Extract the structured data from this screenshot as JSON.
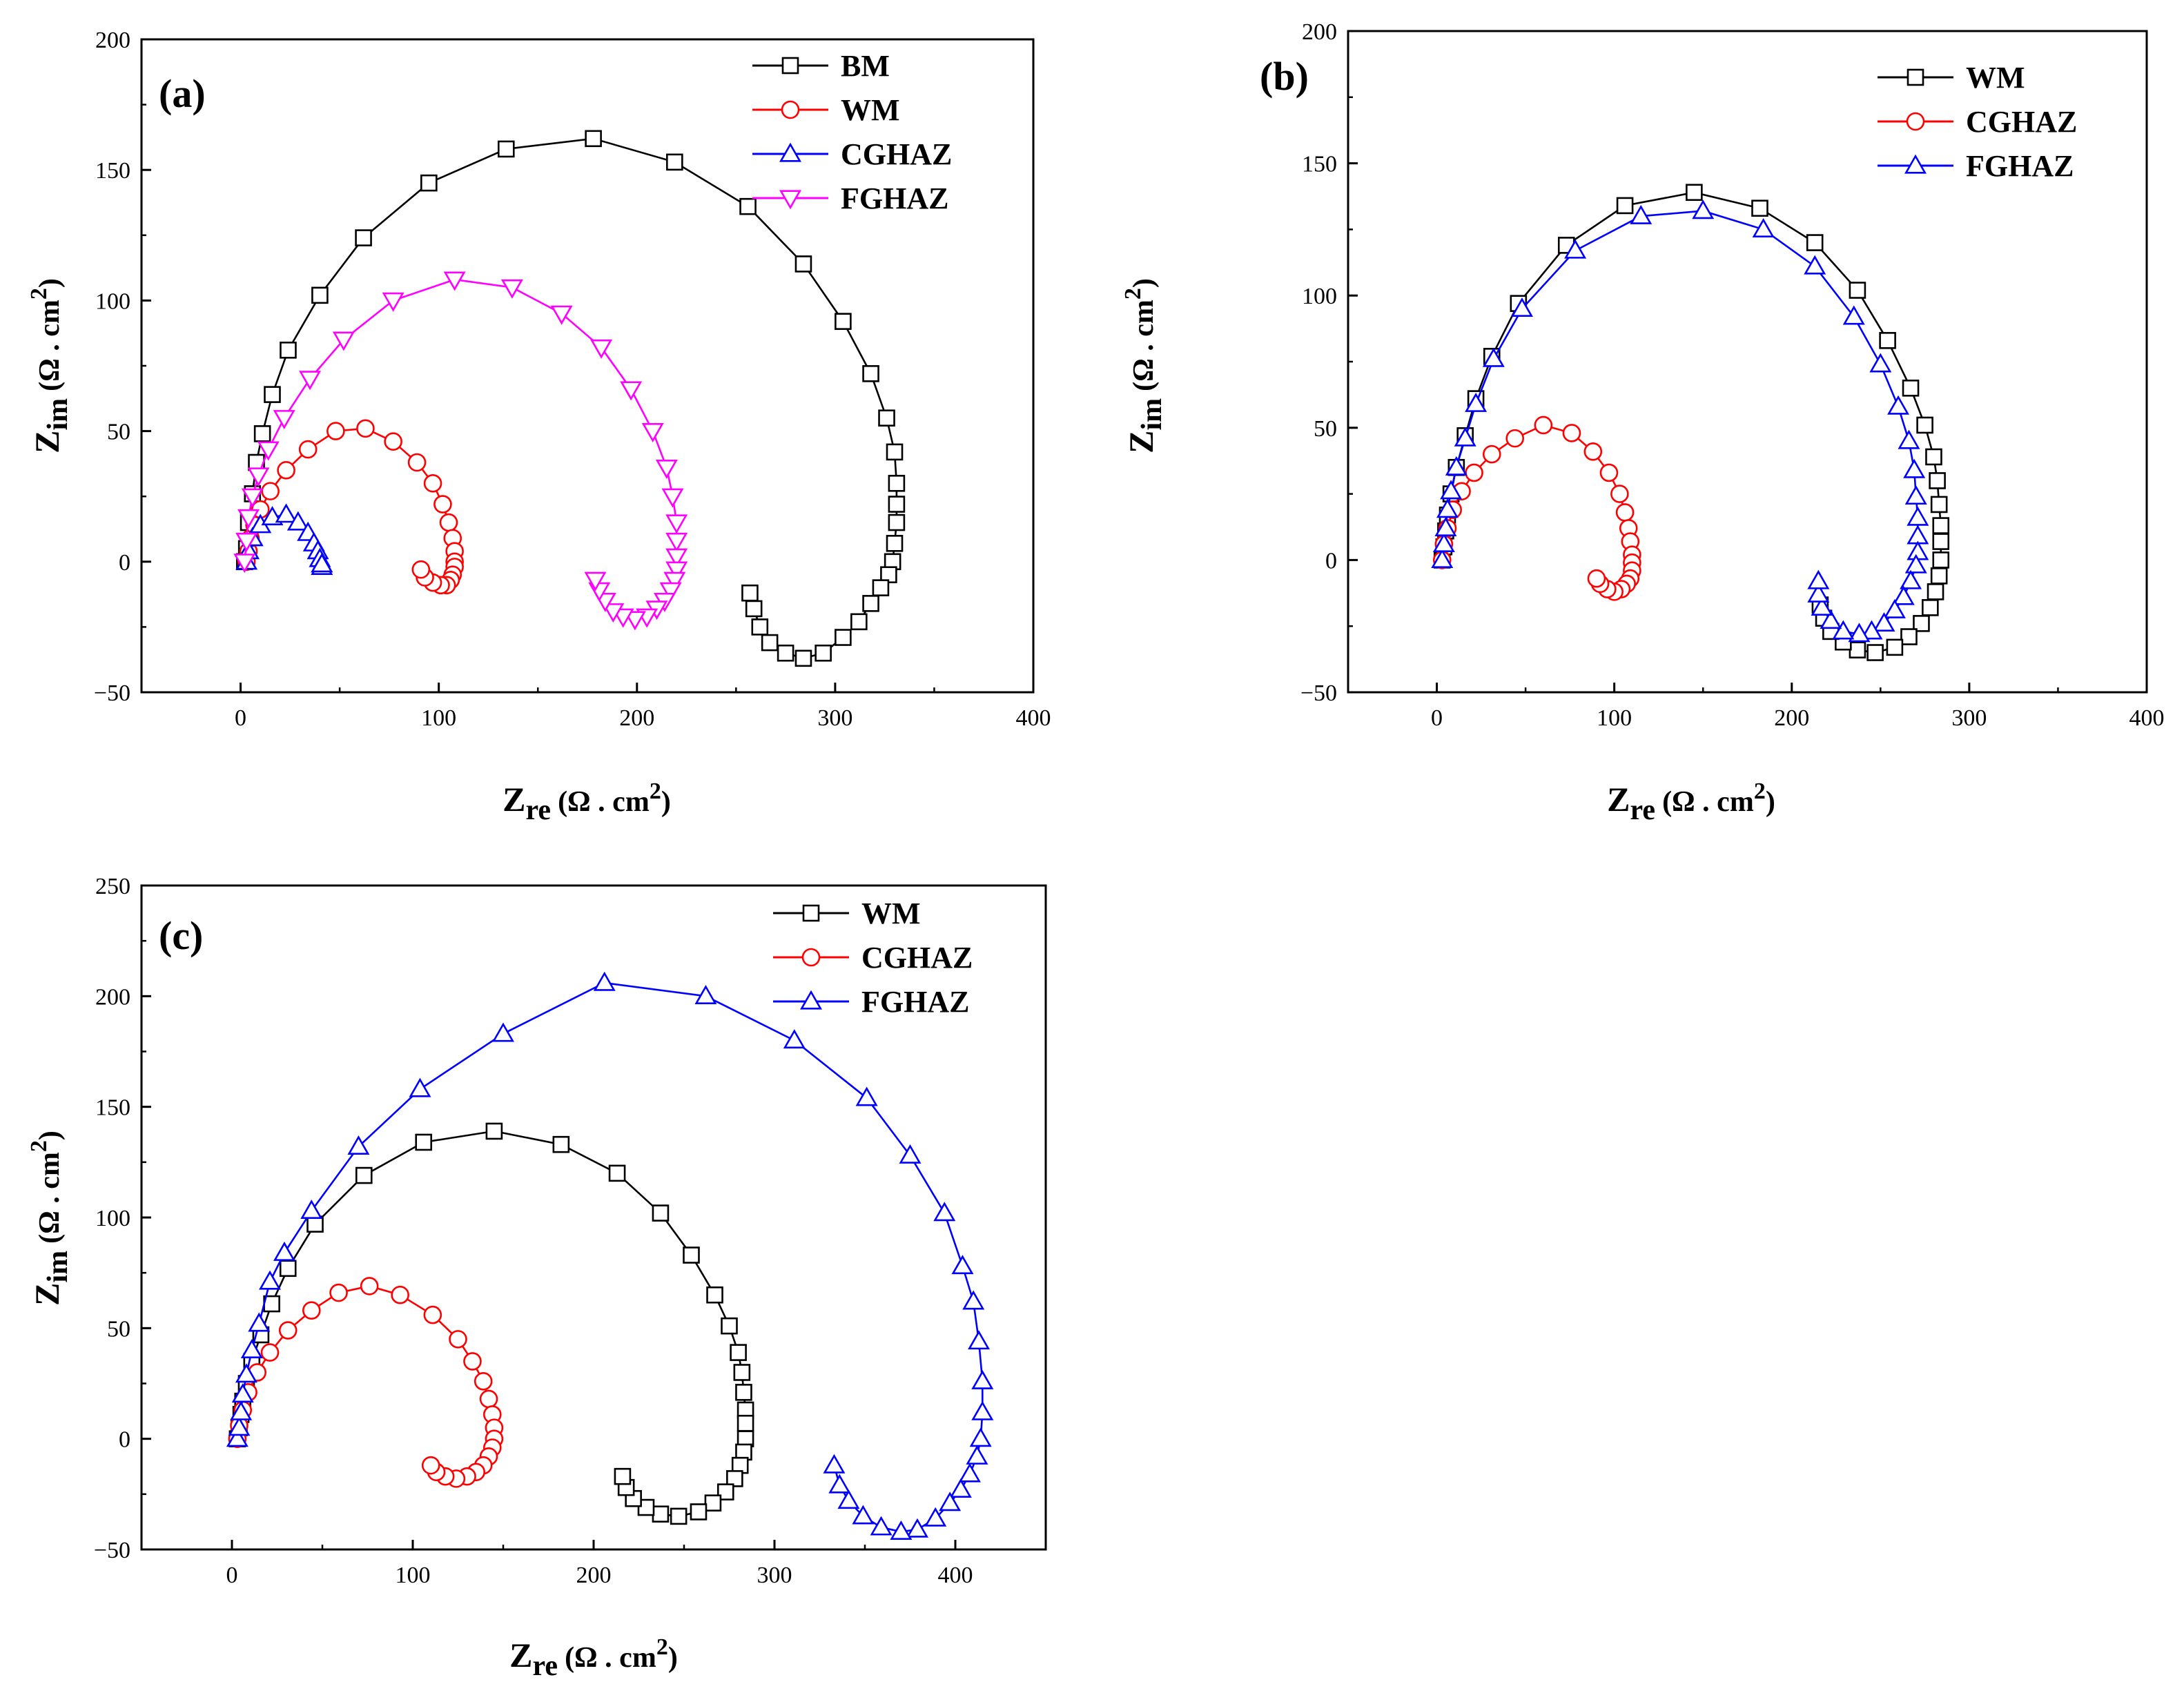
{
  "series_colors": {
    "BM": "#000000",
    "WM": "#ff0000",
    "CGHAZ": "#0000ff",
    "FGHAZ": "#ff00ff"
  },
  "chart_data": [
    {
      "type": "scatter",
      "panel_label": "(a)",
      "xlabel_main": "Z",
      "xlabel_sub": "re",
      "xlabel_unit": "(Ω . cm",
      "xlabel_sup": "2",
      "xlabel_close": ")",
      "ylabel_main": "Z",
      "ylabel_sub": "im",
      "ylabel_unit": "(Ω . cm",
      "ylabel_sup": "2",
      "ylabel_close": ")",
      "xlim": [
        -50,
        400
      ],
      "ylim": [
        -50,
        200
      ],
      "xticks": [
        0,
        100,
        200,
        300,
        400
      ],
      "yticks": [
        -50,
        0,
        50,
        100,
        150,
        200
      ],
      "legend_position": "top-right",
      "series": [
        {
          "name": "BM",
          "color": "#000000",
          "marker": "square",
          "x": [
            2,
            3,
            4,
            6,
            8,
            11,
            16,
            24,
            40,
            62,
            95,
            134,
            178,
            219,
            256,
            284,
            304,
            318,
            326,
            330,
            331,
            331,
            331,
            330,
            329,
            327,
            323,
            318,
            312,
            304,
            294,
            284,
            275,
            267,
            262,
            259,
            257
          ],
          "y": [
            0,
            5,
            15,
            26,
            38,
            49,
            64,
            81,
            102,
            124,
            145,
            158,
            162,
            153,
            136,
            114,
            92,
            72,
            55,
            42,
            30,
            22,
            15,
            7,
            0,
            -5,
            -10,
            -16,
            -23,
            -29,
            -35,
            -37,
            -35,
            -31,
            -25,
            -18,
            -12
          ]
        },
        {
          "name": "WM",
          "color": "#ff0000",
          "marker": "circle",
          "x": [
            3,
            4,
            5,
            7,
            10,
            15,
            23,
            34,
            48,
            63,
            77,
            89,
            97,
            102,
            105,
            107,
            108,
            108,
            108,
            107,
            106,
            104,
            101,
            97,
            93,
            91
          ],
          "y": [
            0,
            4,
            9,
            14,
            20,
            27,
            35,
            43,
            50,
            51,
            46,
            38,
            30,
            22,
            15,
            9,
            4,
            0,
            -2,
            -5,
            -7,
            -9,
            -9,
            -8,
            -6,
            -3
          ]
        },
        {
          "name": "CGHAZ",
          "color": "#0000ff",
          "marker": "triangle-up",
          "x": [
            3,
            4,
            6,
            10,
            16,
            23,
            29,
            34,
            37,
            39,
            40,
            41,
            41,
            41
          ],
          "y": [
            0,
            4,
            9,
            14,
            17,
            18,
            15,
            11,
            7,
            4,
            1,
            -1,
            -2,
            -1
          ]
        },
        {
          "name": "FGHAZ",
          "color": "#ff00ff",
          "marker": "triangle-down",
          "x": [
            2,
            3,
            4,
            6,
            9,
            14,
            22,
            35,
            52,
            77,
            108,
            137,
            162,
            182,
            197,
            208,
            215,
            218,
            220,
            220,
            220,
            220,
            219,
            217,
            214,
            210,
            205,
            199,
            193,
            188,
            184,
            181,
            179
          ],
          "y": [
            0,
            8,
            17,
            25,
            33,
            43,
            55,
            70,
            85,
            100,
            108,
            105,
            95,
            82,
            66,
            50,
            36,
            25,
            15,
            8,
            2,
            -3,
            -7,
            -11,
            -15,
            -18,
            -21,
            -22,
            -21,
            -19,
            -15,
            -11,
            -7
          ]
        }
      ]
    },
    {
      "type": "scatter",
      "panel_label": "(b)",
      "xlabel_main": "Z",
      "xlabel_sub": "re",
      "xlabel_unit": "(Ω . cm",
      "xlabel_sup": "2",
      "xlabel_close": ")",
      "ylabel_main": "Z",
      "ylabel_sub": "im",
      "ylabel_unit": "(Ω . cm",
      "ylabel_sup": "2",
      "ylabel_close": ")",
      "xlim": [
        -50,
        400
      ],
      "ylim": [
        -50,
        200
      ],
      "xticks": [
        -50,
        0,
        100,
        200,
        300,
        400
      ],
      "xtick_labels": [
        "",
        "0",
        "100",
        "200",
        "300",
        "400"
      ],
      "yticks": [
        -50,
        0,
        50,
        100,
        150,
        200
      ],
      "legend_position": "top-right",
      "series": [
        {
          "name": "WM",
          "color": "#000000",
          "marker": "square",
          "x": [
            3,
            4,
            5,
            6,
            8,
            11,
            16,
            22,
            31,
            46,
            73,
            106,
            145,
            182,
            213,
            237,
            254,
            267,
            275,
            280,
            282,
            283,
            284,
            284,
            284,
            283,
            281,
            278,
            273,
            266,
            258,
            247,
            237,
            229,
            222,
            218,
            216
          ],
          "y": [
            0,
            5,
            11,
            17,
            25,
            35,
            47,
            61,
            77,
            97,
            119,
            134,
            139,
            133,
            120,
            102,
            83,
            65,
            51,
            39,
            30,
            21,
            13,
            7,
            0,
            -6,
            -12,
            -18,
            -24,
            -29,
            -33,
            -35,
            -34,
            -31,
            -27,
            -22,
            -17
          ]
        },
        {
          "name": "CGHAZ",
          "color": "#ff0000",
          "marker": "circle",
          "x": [
            3,
            4,
            6,
            9,
            14,
            21,
            31,
            44,
            60,
            76,
            88,
            97,
            103,
            106,
            108,
            109,
            110,
            110,
            110,
            109,
            107,
            104,
            100,
            96,
            92,
            90
          ],
          "y": [
            0,
            6,
            12,
            19,
            26,
            33,
            40,
            46,
            51,
            48,
            41,
            33,
            25,
            18,
            12,
            7,
            2,
            -1,
            -4,
            -7,
            -9,
            -11,
            -12,
            -11,
            -9,
            -7
          ]
        },
        {
          "name": "FGHAZ",
          "color": "#0000ff",
          "marker": "triangle-up",
          "x": [
            3,
            4,
            5,
            6,
            8,
            11,
            16,
            22,
            32,
            48,
            78,
            115,
            150,
            184,
            213,
            235,
            250,
            260,
            266,
            269,
            270,
            271,
            271,
            271,
            270,
            267,
            263,
            258,
            252,
            245,
            238,
            229,
            222,
            217,
            215,
            215
          ],
          "y": [
            0,
            6,
            12,
            19,
            26,
            35,
            46,
            59,
            76,
            95,
            117,
            130,
            132,
            125,
            111,
            92,
            74,
            58,
            45,
            34,
            24,
            16,
            9,
            3,
            -2,
            -8,
            -14,
            -19,
            -24,
            -27,
            -28,
            -27,
            -23,
            -18,
            -13,
            -8
          ]
        }
      ]
    },
    {
      "type": "scatter",
      "panel_label": "(c)",
      "xlabel_main": "Z",
      "xlabel_sub": "re",
      "xlabel_unit": "(Ω . cm",
      "xlabel_sup": "2",
      "xlabel_close": ")",
      "ylabel_main": "Z",
      "ylabel_sub": "im",
      "ylabel_unit": "(Ω . cm",
      "ylabel_sup": "2",
      "ylabel_close": ")",
      "xlim": [
        -50,
        450
      ],
      "ylim": [
        -50,
        250
      ],
      "xticks": [
        0,
        100,
        200,
        300,
        400
      ],
      "yticks": [
        -50,
        0,
        50,
        100,
        150,
        200,
        250
      ],
      "legend_position": "top-right",
      "series": [
        {
          "name": "WM",
          "color": "#000000",
          "marker": "square",
          "x": [
            3,
            4,
            5,
            6,
            8,
            11,
            16,
            22,
            31,
            46,
            73,
            106,
            145,
            182,
            213,
            237,
            254,
            267,
            275,
            280,
            282,
            283,
            284,
            284,
            284,
            283,
            281,
            278,
            273,
            266,
            258,
            247,
            237,
            229,
            222,
            218,
            216
          ],
          "y": [
            0,
            5,
            11,
            17,
            25,
            35,
            47,
            61,
            77,
            97,
            119,
            134,
            139,
            133,
            120,
            102,
            83,
            65,
            51,
            39,
            30,
            21,
            13,
            7,
            0,
            -6,
            -12,
            -18,
            -24,
            -29,
            -33,
            -35,
            -34,
            -31,
            -27,
            -22,
            -17
          ]
        },
        {
          "name": "CGHAZ",
          "color": "#ff0000",
          "marker": "circle",
          "x": [
            3,
            4,
            6,
            9,
            14,
            21,
            31,
            44,
            59,
            76,
            93,
            111,
            125,
            133,
            139,
            142,
            144,
            145,
            145,
            144,
            142,
            139,
            135,
            130,
            124,
            118,
            113,
            110
          ],
          "y": [
            0,
            6,
            13,
            21,
            30,
            39,
            49,
            58,
            66,
            69,
            65,
            56,
            45,
            35,
            26,
            18,
            11,
            5,
            0,
            -4,
            -8,
            -12,
            -15,
            -17,
            -18,
            -17,
            -15,
            -12
          ]
        },
        {
          "name": "FGHAZ",
          "color": "#0000ff",
          "marker": "triangle-up",
          "x": [
            3,
            4,
            5,
            6,
            8,
            11,
            15,
            21,
            29,
            44,
            70,
            104,
            150,
            206,
            262,
            311,
            351,
            375,
            394,
            404,
            410,
            413,
            415,
            415,
            414,
            412,
            408,
            403,
            397,
            389,
            379,
            370,
            359,
            349,
            341,
            336,
            333
          ],
          "y": [
            0,
            5,
            12,
            20,
            29,
            40,
            52,
            71,
            84,
            103,
            132,
            158,
            183,
            206,
            200,
            180,
            154,
            128,
            102,
            78,
            62,
            44,
            26,
            12,
            0,
            -8,
            -16,
            -23,
            -29,
            -36,
            -41,
            -42,
            -40,
            -35,
            -28,
            -21,
            -12
          ]
        }
      ]
    }
  ]
}
